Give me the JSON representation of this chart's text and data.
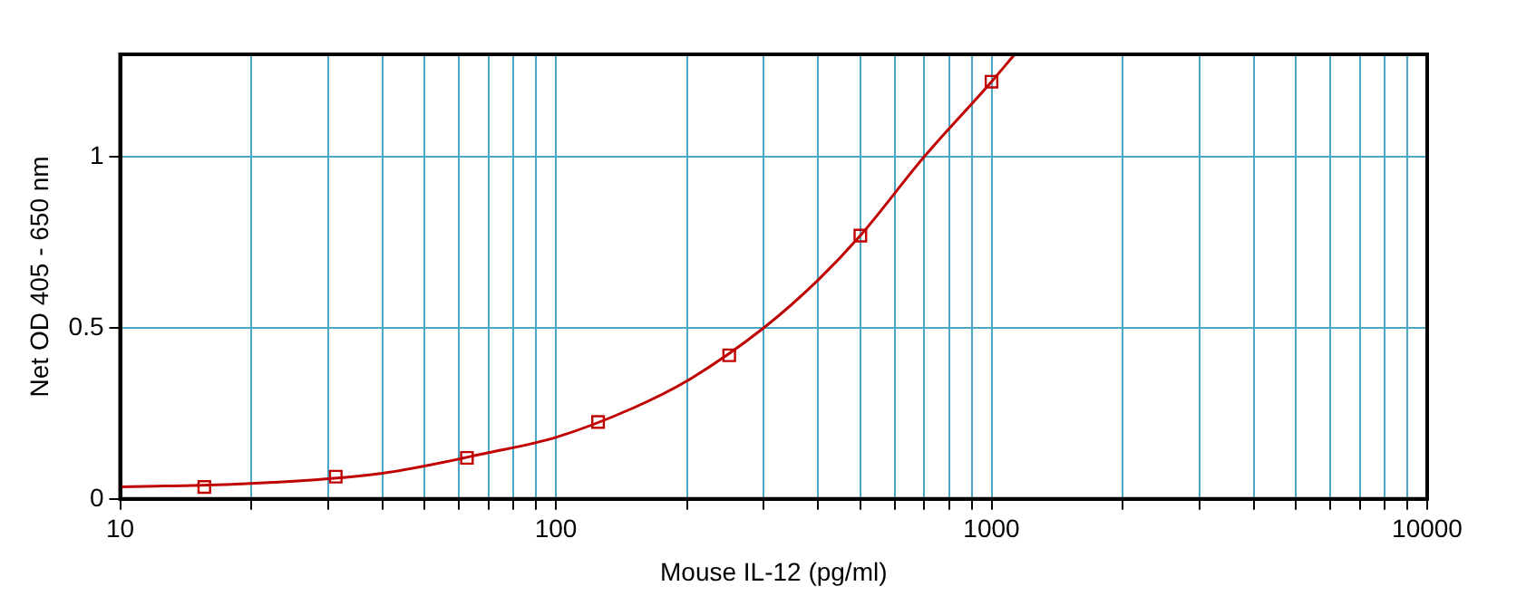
{
  "chart_data": {
    "type": "scatter",
    "xlabel": "Mouse IL-12 (pg/ml)",
    "ylabel": "Net OD 405 - 650 nm",
    "log": "x",
    "grid": true,
    "legend": false,
    "xlim": [
      10,
      10000
    ],
    "ylim": [
      0,
      1.3
    ],
    "xticks": [
      10,
      {
        "value": 20,
        "label": null
      },
      {
        "value": 30,
        "label": null
      },
      {
        "value": 40,
        "label": null
      },
      {
        "value": 50,
        "label": null
      },
      {
        "value": 60,
        "label": null
      },
      {
        "value": 70,
        "label": null
      },
      {
        "value": 80,
        "label": null
      },
      {
        "value": 90,
        "label": null
      },
      100,
      {
        "value": 200,
        "label": null
      },
      {
        "value": 300,
        "label": null
      },
      {
        "value": 400,
        "label": null
      },
      {
        "value": 500,
        "label": null
      },
      {
        "value": 600,
        "label": null
      },
      {
        "value": 700,
        "label": null
      },
      {
        "value": 800,
        "label": null
      },
      {
        "value": 900,
        "label": null
      },
      1000,
      {
        "value": 2000,
        "label": null
      },
      {
        "value": 3000,
        "label": null
      },
      {
        "value": 4000,
        "label": null
      },
      {
        "value": 5000,
        "label": null
      },
      {
        "value": 6000,
        "label": null
      },
      {
        "value": 7000,
        "label": null
      },
      {
        "value": 8000,
        "label": null
      },
      {
        "value": 9000,
        "label": null
      },
      10000
    ],
    "yticks": [
      0,
      0.5,
      1
    ],
    "series": [
      {
        "type": "line",
        "color": "#c00000",
        "marker": "none",
        "x": [
          10,
          20,
          40,
          70,
          100,
          150,
          200,
          300,
          400,
          500,
          700,
          1000,
          1130
        ],
        "values": [
          0.035,
          0.045,
          0.075,
          0.135,
          0.18,
          0.265,
          0.345,
          0.5,
          0.64,
          0.77,
          1.0,
          1.22,
          1.3
        ]
      },
      {
        "color": "#c00000",
        "marker": "square",
        "x": [
          15.6,
          31.25,
          62.5,
          125,
          250,
          500,
          1000
        ],
        "values": [
          0.035,
          0.065,
          0.12,
          0.225,
          0.42,
          0.77,
          1.22
        ]
      }
    ]
  }
}
